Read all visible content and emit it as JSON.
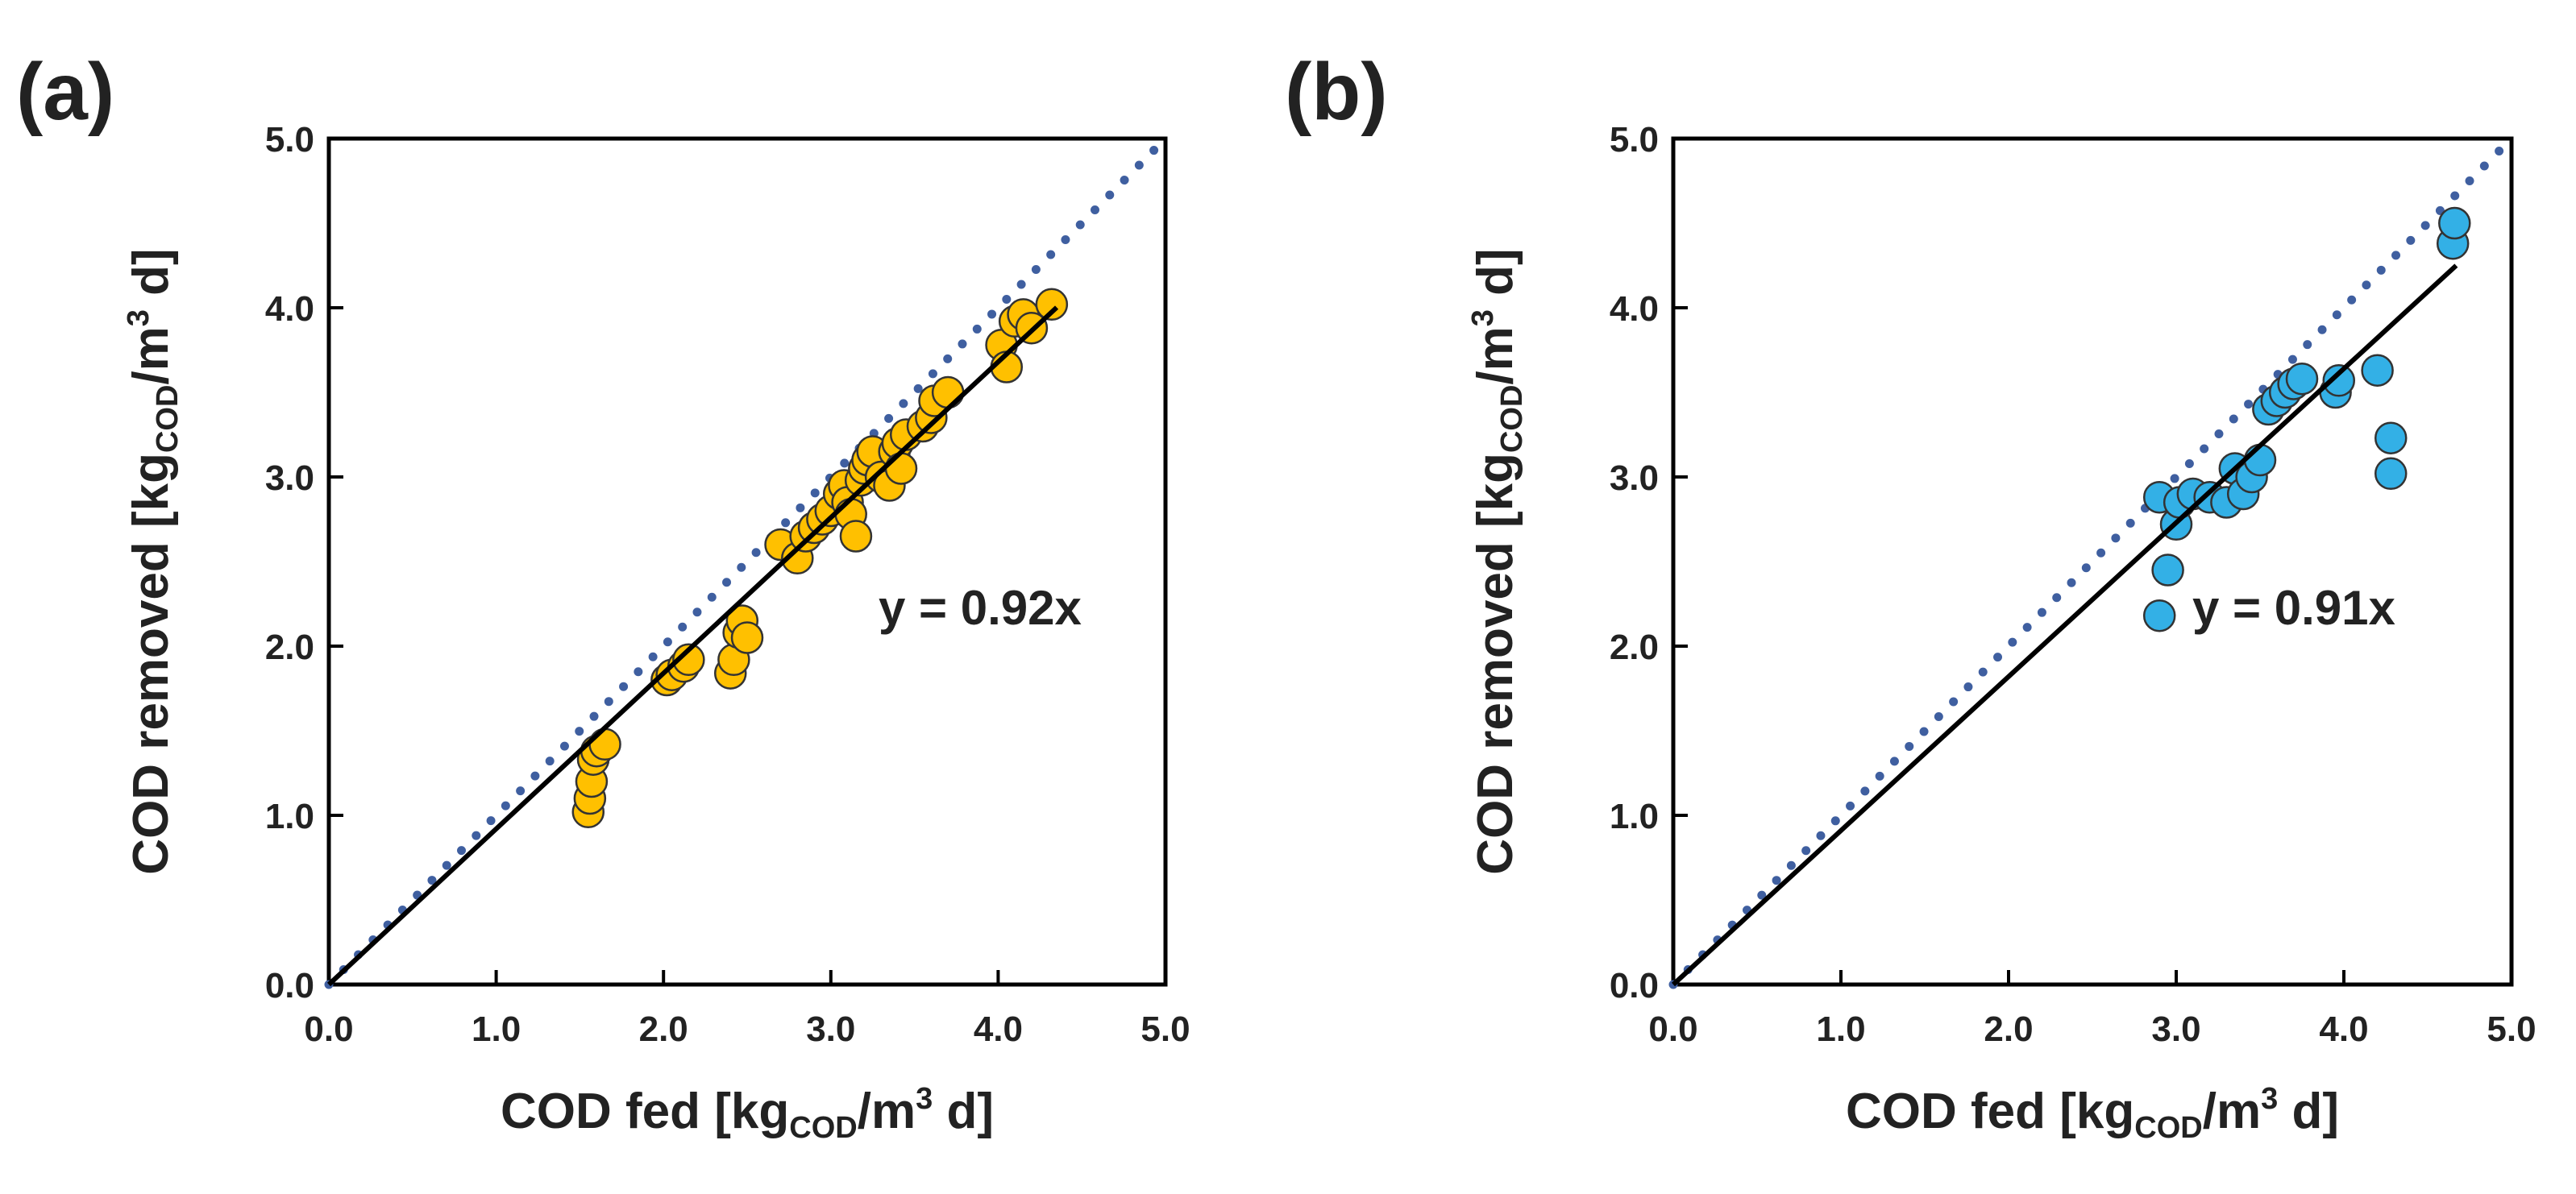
{
  "chart_data": [
    {
      "panel_label": "(a)",
      "type": "scatter",
      "xlabel": {
        "main": "COD fed [kg",
        "sub": "COD",
        "mid": "/m",
        "sup": "3",
        "end": " d]"
      },
      "ylabel": {
        "main": "COD removed [kg",
        "sub": "COD",
        "mid": "/m",
        "sup": "3",
        "end": " d]"
      },
      "xlim": [
        0,
        5
      ],
      "ylim": [
        0,
        5
      ],
      "xticks": [
        "0.0",
        "1.0",
        "2.0",
        "3.0",
        "4.0",
        "5.0"
      ],
      "yticks": [
        "0.0",
        "1.0",
        "2.0",
        "3.0",
        "4.0",
        "5.0"
      ],
      "grid": false,
      "fit_label": "y = 0.92x",
      "fit_slope": 0.92,
      "fit_x_range": [
        0,
        4.35
      ],
      "reference_line": {
        "slope": 1,
        "style": "dotted",
        "x_range": [
          0,
          4.95
        ]
      },
      "point_color": "#FFC000",
      "points": [
        [
          1.55,
          1.02
        ],
        [
          1.56,
          1.1
        ],
        [
          1.57,
          1.2
        ],
        [
          1.58,
          1.33
        ],
        [
          1.6,
          1.38
        ],
        [
          1.65,
          1.42
        ],
        [
          2.02,
          1.8
        ],
        [
          2.05,
          1.83
        ],
        [
          2.12,
          1.88
        ],
        [
          2.15,
          1.92
        ],
        [
          2.4,
          1.84
        ],
        [
          2.42,
          1.92
        ],
        [
          2.45,
          2.08
        ],
        [
          2.47,
          2.15
        ],
        [
          2.5,
          2.05
        ],
        [
          2.7,
          2.6
        ],
        [
          2.8,
          2.52
        ],
        [
          2.85,
          2.65
        ],
        [
          2.9,
          2.7
        ],
        [
          2.95,
          2.75
        ],
        [
          3.0,
          2.8
        ],
        [
          3.05,
          2.9
        ],
        [
          3.08,
          2.95
        ],
        [
          3.1,
          2.85
        ],
        [
          3.12,
          2.78
        ],
        [
          3.15,
          2.65
        ],
        [
          3.18,
          2.98
        ],
        [
          3.2,
          3.05
        ],
        [
          3.22,
          3.1
        ],
        [
          3.25,
          3.15
        ],
        [
          3.3,
          3.0
        ],
        [
          3.35,
          2.95
        ],
        [
          3.38,
          3.15
        ],
        [
          3.4,
          3.2
        ],
        [
          3.42,
          3.05
        ],
        [
          3.45,
          3.25
        ],
        [
          3.55,
          3.3
        ],
        [
          3.6,
          3.35
        ],
        [
          3.62,
          3.45
        ],
        [
          3.7,
          3.5
        ],
        [
          4.02,
          3.78
        ],
        [
          4.05,
          3.65
        ],
        [
          4.1,
          3.92
        ],
        [
          4.15,
          3.96
        ],
        [
          4.2,
          3.88
        ],
        [
          4.32,
          4.02
        ]
      ]
    },
    {
      "panel_label": "(b)",
      "type": "scatter",
      "xlabel": {
        "main": "COD fed [kg",
        "sub": "COD",
        "mid": "/m",
        "sup": "3",
        "end": " d]"
      },
      "ylabel": {
        "main": "COD removed [kg",
        "sub": "COD",
        "mid": "/m",
        "sup": "3",
        "end": " d]"
      },
      "xlim": [
        0,
        5
      ],
      "ylim": [
        0,
        5
      ],
      "xticks": [
        "0.0",
        "1.0",
        "2.0",
        "3.0",
        "4.0",
        "5.0"
      ],
      "yticks": [
        "0.0",
        "1.0",
        "2.0",
        "3.0",
        "4.0",
        "5.0"
      ],
      "grid": false,
      "fit_label": "y = 0.91x",
      "fit_slope": 0.91,
      "fit_x_range": [
        0,
        4.67
      ],
      "reference_line": {
        "slope": 1,
        "style": "dotted",
        "x_range": [
          0,
          4.95
        ]
      },
      "point_color": "#33B0E6",
      "points": [
        [
          2.9,
          2.18
        ],
        [
          2.95,
          2.45
        ],
        [
          2.9,
          2.88
        ],
        [
          3.0,
          2.72
        ],
        [
          3.02,
          2.85
        ],
        [
          3.1,
          2.9
        ],
        [
          3.2,
          2.88
        ],
        [
          3.3,
          2.85
        ],
        [
          3.35,
          3.05
        ],
        [
          3.4,
          2.9
        ],
        [
          3.45,
          3.0
        ],
        [
          3.5,
          3.1
        ],
        [
          3.55,
          3.4
        ],
        [
          3.6,
          3.45
        ],
        [
          3.65,
          3.5
        ],
        [
          3.7,
          3.55
        ],
        [
          3.75,
          3.58
        ],
        [
          3.95,
          3.5
        ],
        [
          3.97,
          3.57
        ],
        [
          4.2,
          3.63
        ],
        [
          4.28,
          3.23
        ],
        [
          4.28,
          3.02
        ],
        [
          4.65,
          4.38
        ],
        [
          4.66,
          4.5
        ]
      ]
    }
  ]
}
